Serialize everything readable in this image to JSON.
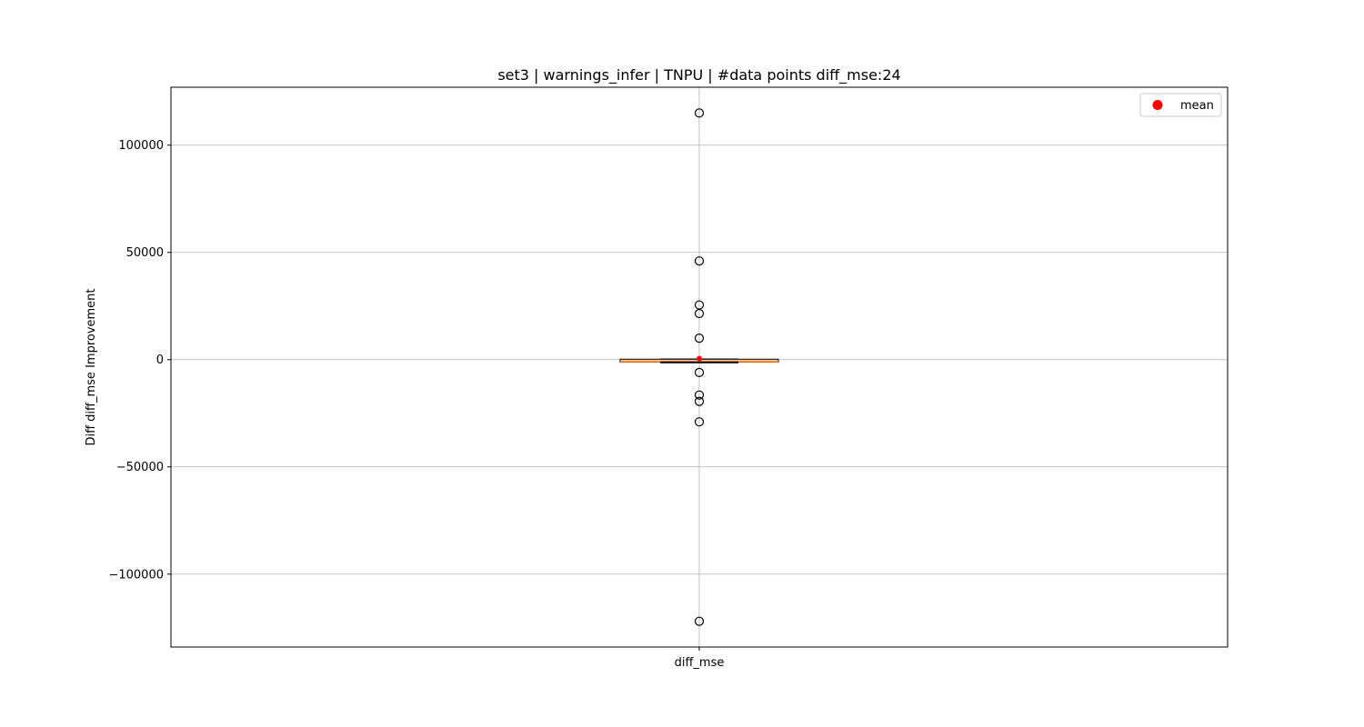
{
  "chart_data": {
    "type": "box",
    "title": "set3 | warnings_infer | TNPU | #data points diff_mse:24",
    "xlabel": "",
    "ylabel": "Diff diff_mse Improvement",
    "categories": [
      "diff_mse"
    ],
    "ylim": [
      -134000,
      127000
    ],
    "yticks": [
      100000,
      50000,
      0,
      -50000,
      -100000
    ],
    "ytick_labels": [
      "100000",
      "50000",
      "0",
      "−50000",
      "−100000"
    ],
    "grid": true,
    "legend": {
      "position": "upper-right",
      "entries": [
        {
          "label": "mean",
          "color": "#ff0000",
          "marker": "circle"
        }
      ]
    },
    "box": {
      "q1": -1200,
      "median": -1000,
      "q3": 200,
      "whisker_low": -1300,
      "whisker_high": 300,
      "mean": 500,
      "fliers": [
        115000,
        46000,
        25500,
        21500,
        10000,
        -6000,
        -16500,
        -19500,
        -29000,
        -122000
      ]
    },
    "colors": {
      "box_fill": "#f4c7a6",
      "box_edge": "#000000",
      "median": "#ff7f0e",
      "mean": "#ff0000",
      "grid": "#b0b0b0"
    }
  }
}
